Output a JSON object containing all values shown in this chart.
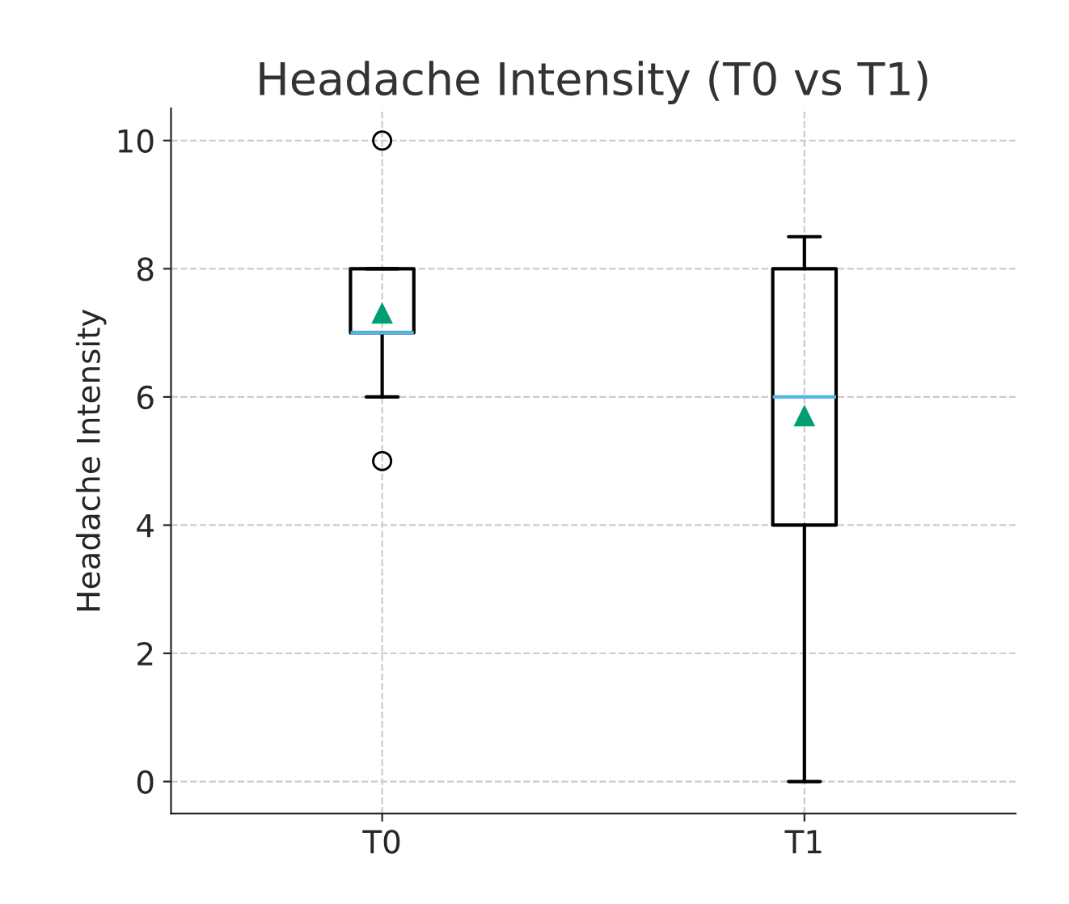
{
  "chart_data": {
    "type": "box",
    "title": "Headache Intensity (T0 vs T1)",
    "ylabel": "Headache Intensity",
    "categories": [
      "T0",
      "T1"
    ],
    "boxes": [
      {
        "low": 6,
        "q1": 7,
        "median": 7,
        "q3": 8,
        "high": 8,
        "mean": 7.3,
        "outliers": [
          5,
          10
        ]
      },
      {
        "low": 0,
        "q1": 4,
        "median": 6,
        "q3": 8,
        "high": 8.5,
        "mean": 5.7
      }
    ],
    "ylim": [
      -0.5,
      10.5
    ],
    "yticks": [
      0,
      2,
      4,
      6,
      8,
      10
    ],
    "grid": true
  }
}
